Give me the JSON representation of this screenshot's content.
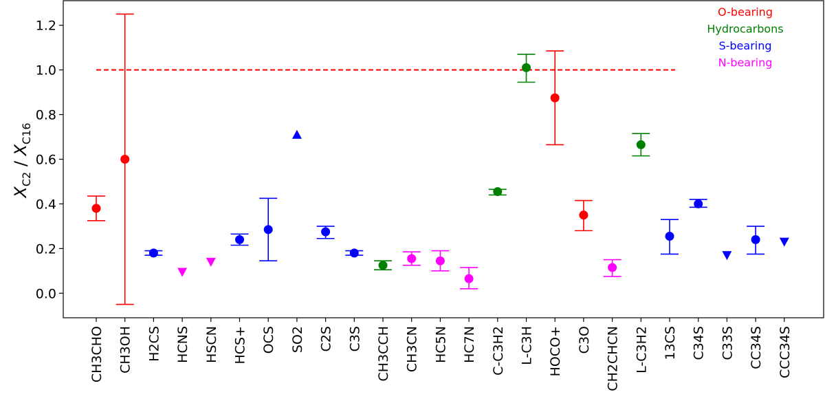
{
  "chart_data": {
    "type": "scatter",
    "ylabel": {
      "num_base": "X",
      "num_sub": "C2",
      "sep": " / ",
      "den_base": "X",
      "den_sub": "C16"
    },
    "ylim": [
      -0.11,
      1.31
    ],
    "yticks": [
      "0.0",
      "0.2",
      "0.4",
      "0.6",
      "0.8",
      "1.0",
      "1.2"
    ],
    "reference_line": {
      "y": 1.0,
      "color": "#ff0000",
      "style": "dashed"
    },
    "grid": false,
    "legend_position": "top-right",
    "groups": [
      {
        "name": "O-bearing",
        "color": "#ff0000"
      },
      {
        "name": "Hydrocarbons",
        "color": "#008000"
      },
      {
        "name": "S-bearing",
        "color": "#0000ff"
      },
      {
        "name": "N-bearing",
        "color": "#ff00ff"
      }
    ],
    "points": [
      {
        "label": "CH3CHO",
        "group": "O-bearing",
        "marker": "circle",
        "y": 0.38,
        "lo": 0.325,
        "hi": 0.435
      },
      {
        "label": "CH3OH",
        "group": "O-bearing",
        "marker": "circle",
        "y": 0.6,
        "lo": -0.05,
        "hi": 1.25
      },
      {
        "label": "H2CS",
        "group": "S-bearing",
        "marker": "circle",
        "y": 0.18,
        "lo": 0.17,
        "hi": 0.19
      },
      {
        "label": "HCNS",
        "group": "N-bearing",
        "marker": "down",
        "y": 0.095
      },
      {
        "label": "HSCN",
        "group": "N-bearing",
        "marker": "down",
        "y": 0.14
      },
      {
        "label": "HCS+",
        "group": "S-bearing",
        "marker": "circle",
        "y": 0.24,
        "lo": 0.215,
        "hi": 0.265
      },
      {
        "label": "OCS",
        "group": "S-bearing",
        "marker": "circle",
        "y": 0.285,
        "lo": 0.145,
        "hi": 0.425
      },
      {
        "label": "SO2",
        "group": "S-bearing",
        "marker": "up",
        "y": 0.71
      },
      {
        "label": "C2S",
        "group": "S-bearing",
        "marker": "circle",
        "y": 0.275,
        "lo": 0.245,
        "hi": 0.3
      },
      {
        "label": "C3S",
        "group": "S-bearing",
        "marker": "circle",
        "y": 0.18,
        "lo": 0.17,
        "hi": 0.19
      },
      {
        "label": "CH3CCH",
        "group": "Hydrocarbons",
        "marker": "circle",
        "y": 0.125,
        "lo": 0.105,
        "hi": 0.145
      },
      {
        "label": "CH3CN",
        "group": "N-bearing",
        "marker": "circle",
        "y": 0.155,
        "lo": 0.125,
        "hi": 0.185
      },
      {
        "label": "HC5N",
        "group": "N-bearing",
        "marker": "circle",
        "y": 0.145,
        "lo": 0.1,
        "hi": 0.19
      },
      {
        "label": "HC7N",
        "group": "N-bearing",
        "marker": "circle",
        "y": 0.065,
        "lo": 0.02,
        "hi": 0.115
      },
      {
        "label": "C-C3H2",
        "group": "Hydrocarbons",
        "marker": "circle",
        "y": 0.455,
        "lo": 0.44,
        "hi": 0.465
      },
      {
        "label": "L-C3H",
        "group": "Hydrocarbons",
        "marker": "circle",
        "y": 1.01,
        "lo": 0.945,
        "hi": 1.07
      },
      {
        "label": "HOCO+",
        "group": "O-bearing",
        "marker": "circle",
        "y": 0.875,
        "lo": 0.665,
        "hi": 1.085
      },
      {
        "label": "C3O",
        "group": "O-bearing",
        "marker": "circle",
        "y": 0.35,
        "lo": 0.28,
        "hi": 0.415
      },
      {
        "label": "CH2CHCN",
        "group": "N-bearing",
        "marker": "circle",
        "y": 0.115,
        "lo": 0.075,
        "hi": 0.15
      },
      {
        "label": "L-C3H2",
        "group": "Hydrocarbons",
        "marker": "circle",
        "y": 0.665,
        "lo": 0.615,
        "hi": 0.715
      },
      {
        "label": "13CS",
        "group": "S-bearing",
        "marker": "circle",
        "y": 0.255,
        "lo": 0.175,
        "hi": 0.33
      },
      {
        "label": "C34S",
        "group": "S-bearing",
        "marker": "circle",
        "y": 0.4,
        "lo": 0.385,
        "hi": 0.42
      },
      {
        "label": "C33S",
        "group": "S-bearing",
        "marker": "down",
        "y": 0.17
      },
      {
        "label": "CC34S",
        "group": "S-bearing",
        "marker": "circle",
        "y": 0.24,
        "lo": 0.175,
        "hi": 0.3
      },
      {
        "label": "CCC34S",
        "group": "S-bearing",
        "marker": "down",
        "y": 0.23
      }
    ]
  }
}
